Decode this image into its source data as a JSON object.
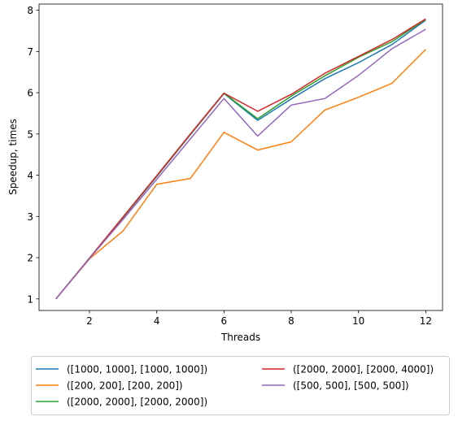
{
  "chart_data": {
    "type": "line",
    "title": "",
    "xlabel": "Threads",
    "ylabel": "Speedup, times",
    "xlim": [
      0.5,
      12.5
    ],
    "ylim": [
      0.72,
      8.15
    ],
    "xticks": [
      2,
      4,
      6,
      8,
      10,
      12
    ],
    "yticks": [
      1,
      2,
      3,
      4,
      5,
      6,
      7,
      8
    ],
    "grid": false,
    "legend_placement": "below the axes, two columns",
    "x": [
      1,
      2,
      3,
      4,
      5,
      6,
      7,
      8,
      9,
      10,
      11,
      12
    ],
    "series": [
      {
        "name": "([1000, 1000], [1000, 1000])",
        "color": "#1f77b4",
        "values": [
          1.0,
          1.99,
          2.97,
          3.97,
          4.98,
          5.98,
          5.33,
          5.85,
          6.34,
          6.73,
          7.17,
          7.76
        ]
      },
      {
        "name": "([200, 200], [200, 200])",
        "color": "#ff7f0e",
        "values": [
          1.0,
          1.97,
          2.65,
          3.78,
          3.92,
          5.04,
          4.61,
          4.81,
          5.58,
          5.89,
          6.23,
          7.05
        ]
      },
      {
        "name": "([2000, 2000], [2000, 2000])",
        "color": "#2ca02c",
        "values": [
          1.0,
          1.99,
          2.98,
          3.98,
          4.99,
          5.99,
          5.37,
          5.92,
          6.41,
          6.86,
          7.24,
          7.78
        ]
      },
      {
        "name": "([2000, 2000], [2000, 4000])",
        "color": "#d62728",
        "values": [
          1.0,
          1.99,
          2.99,
          3.99,
          5.0,
          5.99,
          5.55,
          5.96,
          6.47,
          6.88,
          7.29,
          7.79
        ]
      },
      {
        "name": "([500, 500], [500, 500])",
        "color": "#9467bd",
        "values": [
          1.0,
          1.98,
          2.93,
          3.9,
          4.88,
          5.86,
          4.95,
          5.7,
          5.86,
          6.42,
          7.07,
          7.54
        ]
      }
    ]
  }
}
